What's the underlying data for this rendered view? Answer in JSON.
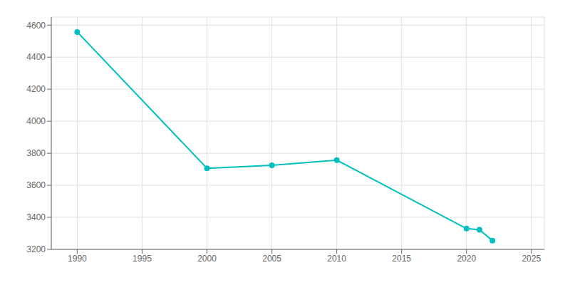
{
  "chart_data": {
    "type": "line",
    "x": [
      1990,
      2000,
      2005,
      2010,
      2020,
      2021,
      2022
    ],
    "values": [
      4557,
      3706,
      3725,
      3757,
      3330,
      3322,
      3255
    ],
    "color": "#00BFBF",
    "marker": "circle",
    "xlim": [
      1988,
      2026
    ],
    "xticks": [
      1990,
      1995,
      2000,
      2005,
      2010,
      2015,
      2020,
      2025
    ],
    "ylim": [
      3200,
      4650
    ],
    "yticks": [
      3200,
      3400,
      3600,
      3800,
      4000,
      4200,
      4400,
      4600
    ],
    "grid": true
  }
}
